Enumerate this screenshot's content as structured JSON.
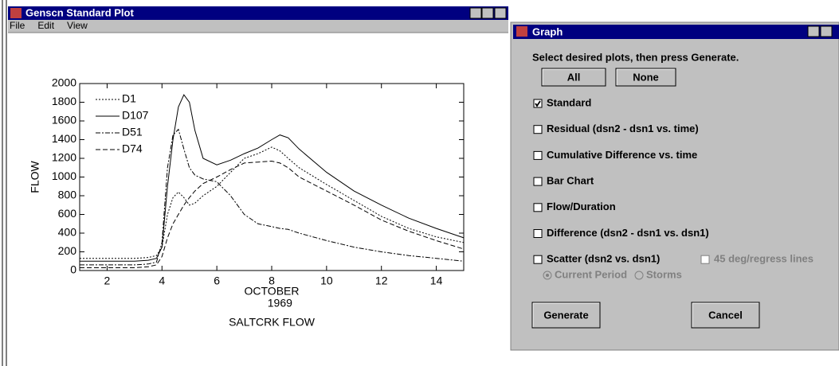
{
  "plot_window": {
    "title": "Genscn Standard Plot",
    "menu": [
      "File",
      "Edit",
      "View"
    ]
  },
  "chart_data": {
    "type": "line",
    "ylabel": "FLOW",
    "xlabel": "OCTOBER",
    "xlabel_year": "1969",
    "caption": "SALTCRK FLOW",
    "x": [
      1,
      2,
      3,
      3.5,
      3.8,
      4,
      4.2,
      4.4,
      4.6,
      4.8,
      5,
      5.2,
      5.5,
      6,
      6.5,
      7,
      7.5,
      8,
      8.3,
      8.6,
      9,
      10,
      11,
      12,
      13,
      14,
      15
    ],
    "series": [
      {
        "name": "D1",
        "color": "#000000",
        "style": "dotted",
        "values": [
          130,
          130,
          130,
          140,
          160,
          250,
          600,
          780,
          840,
          780,
          700,
          720,
          800,
          900,
          1050,
          1200,
          1250,
          1320,
          1280,
          1200,
          1100,
          920,
          750,
          580,
          450,
          360,
          300
        ]
      },
      {
        "name": "D107",
        "color": "#000000",
        "style": "solid",
        "values": [
          100,
          100,
          100,
          110,
          130,
          250,
          900,
          1400,
          1750,
          1880,
          1800,
          1500,
          1200,
          1130,
          1180,
          1250,
          1310,
          1400,
          1450,
          1420,
          1300,
          1050,
          850,
          700,
          560,
          450,
          350
        ]
      },
      {
        "name": "D51",
        "color": "#000000",
        "style": "dashdot",
        "values": [
          60,
          60,
          60,
          70,
          90,
          300,
          1100,
          1450,
          1510,
          1300,
          1100,
          1020,
          980,
          950,
          800,
          600,
          500,
          470,
          450,
          440,
          400,
          320,
          250,
          200,
          160,
          130,
          100
        ]
      },
      {
        "name": "D74",
        "color": "#000000",
        "style": "dashed",
        "values": [
          30,
          30,
          30,
          40,
          60,
          150,
          350,
          500,
          600,
          700,
          780,
          850,
          930,
          1000,
          1080,
          1150,
          1160,
          1170,
          1150,
          1100,
          1000,
          850,
          700,
          540,
          420,
          320,
          230
        ]
      }
    ],
    "xlim": [
      1,
      15
    ],
    "xticks": [
      2,
      4,
      6,
      8,
      10,
      12,
      14
    ],
    "ylim": [
      0,
      2000
    ],
    "yticks": [
      0,
      200,
      400,
      600,
      800,
      1000,
      1200,
      1400,
      1600,
      1800,
      2000
    ],
    "legend": "upper left"
  },
  "dialog": {
    "title": "Graph",
    "instruction": "Select desired plots, then press Generate.",
    "select_buttons": [
      "All",
      "None"
    ],
    "options": [
      {
        "label": "Standard",
        "checked": true
      },
      {
        "label": "Residual (dsn2 - dsn1 vs. time)",
        "checked": false
      },
      {
        "label": "Cumulative Difference vs. time",
        "checked": false
      },
      {
        "label": "Bar Chart",
        "checked": false
      },
      {
        "label": "Flow/Duration",
        "checked": false
      },
      {
        "label": "Difference (dsn2 - dsn1 vs. dsn1)",
        "checked": false
      },
      {
        "label": "Scatter (dsn2  vs. dsn1)",
        "checked": false
      }
    ],
    "scatter_option": {
      "label": "45 deg/regress lines",
      "checked": false,
      "enabled": false
    },
    "radios": [
      {
        "label": "Current Period",
        "selected": true
      },
      {
        "label": "Storms",
        "selected": false
      }
    ],
    "actions": [
      "Generate",
      "Cancel"
    ]
  }
}
